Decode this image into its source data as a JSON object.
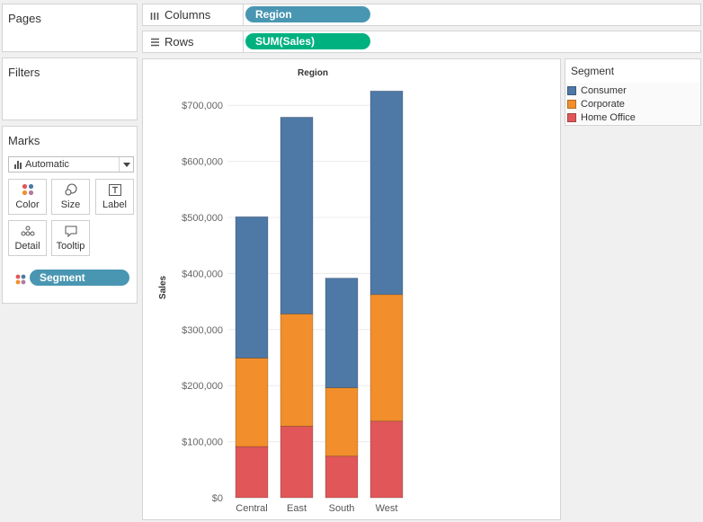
{
  "pages": {
    "title": "Pages"
  },
  "filters": {
    "title": "Filters"
  },
  "shelves": {
    "columns": {
      "label": "Columns",
      "pill": "Region"
    },
    "rows": {
      "label": "Rows",
      "pill": "SUM(Sales)"
    }
  },
  "marks": {
    "title": "Marks",
    "mark_type": "Automatic",
    "buttons": [
      {
        "label": "Color",
        "icon": "color-dots-icon"
      },
      {
        "label": "Size",
        "icon": "size-icon"
      },
      {
        "label": "Label",
        "icon": "label-icon"
      },
      {
        "label": "Detail",
        "icon": "detail-icon"
      },
      {
        "label": "Tooltip",
        "icon": "tooltip-icon"
      }
    ],
    "color_pill": "Segment"
  },
  "colors": {
    "pill_dimension": "#4996b2",
    "pill_measure": "#00b180",
    "consumer": "#4e79a7",
    "corporate": "#f28e2b",
    "home_office": "#e15759"
  },
  "legend": {
    "title": "Segment",
    "items": [
      "Consumer",
      "Corporate",
      "Home Office"
    ]
  },
  "chart_data": {
    "type": "bar",
    "stacked": true,
    "title": "Region",
    "ylabel": "Sales",
    "xlabel": "",
    "categories": [
      "Central",
      "East",
      "South",
      "West"
    ],
    "series": [
      {
        "name": "Home Office",
        "values": [
          91212,
          127463,
          74255,
          136722
        ]
      },
      {
        "name": "Corporate",
        "values": [
          157996,
          200409,
          121885,
          225855
        ]
      },
      {
        "name": "Consumer",
        "values": [
          252031,
          350908,
          195581,
          362881
        ]
      }
    ],
    "ylim": [
      0,
      750000
    ],
    "yticks": [
      0,
      100000,
      200000,
      300000,
      400000,
      500000,
      600000,
      700000
    ],
    "ytick_labels": [
      "$0",
      "$100,000",
      "$200,000",
      "$300,000",
      "$400,000",
      "$500,000",
      "$600,000",
      "$700,000"
    ],
    "grid": true
  }
}
